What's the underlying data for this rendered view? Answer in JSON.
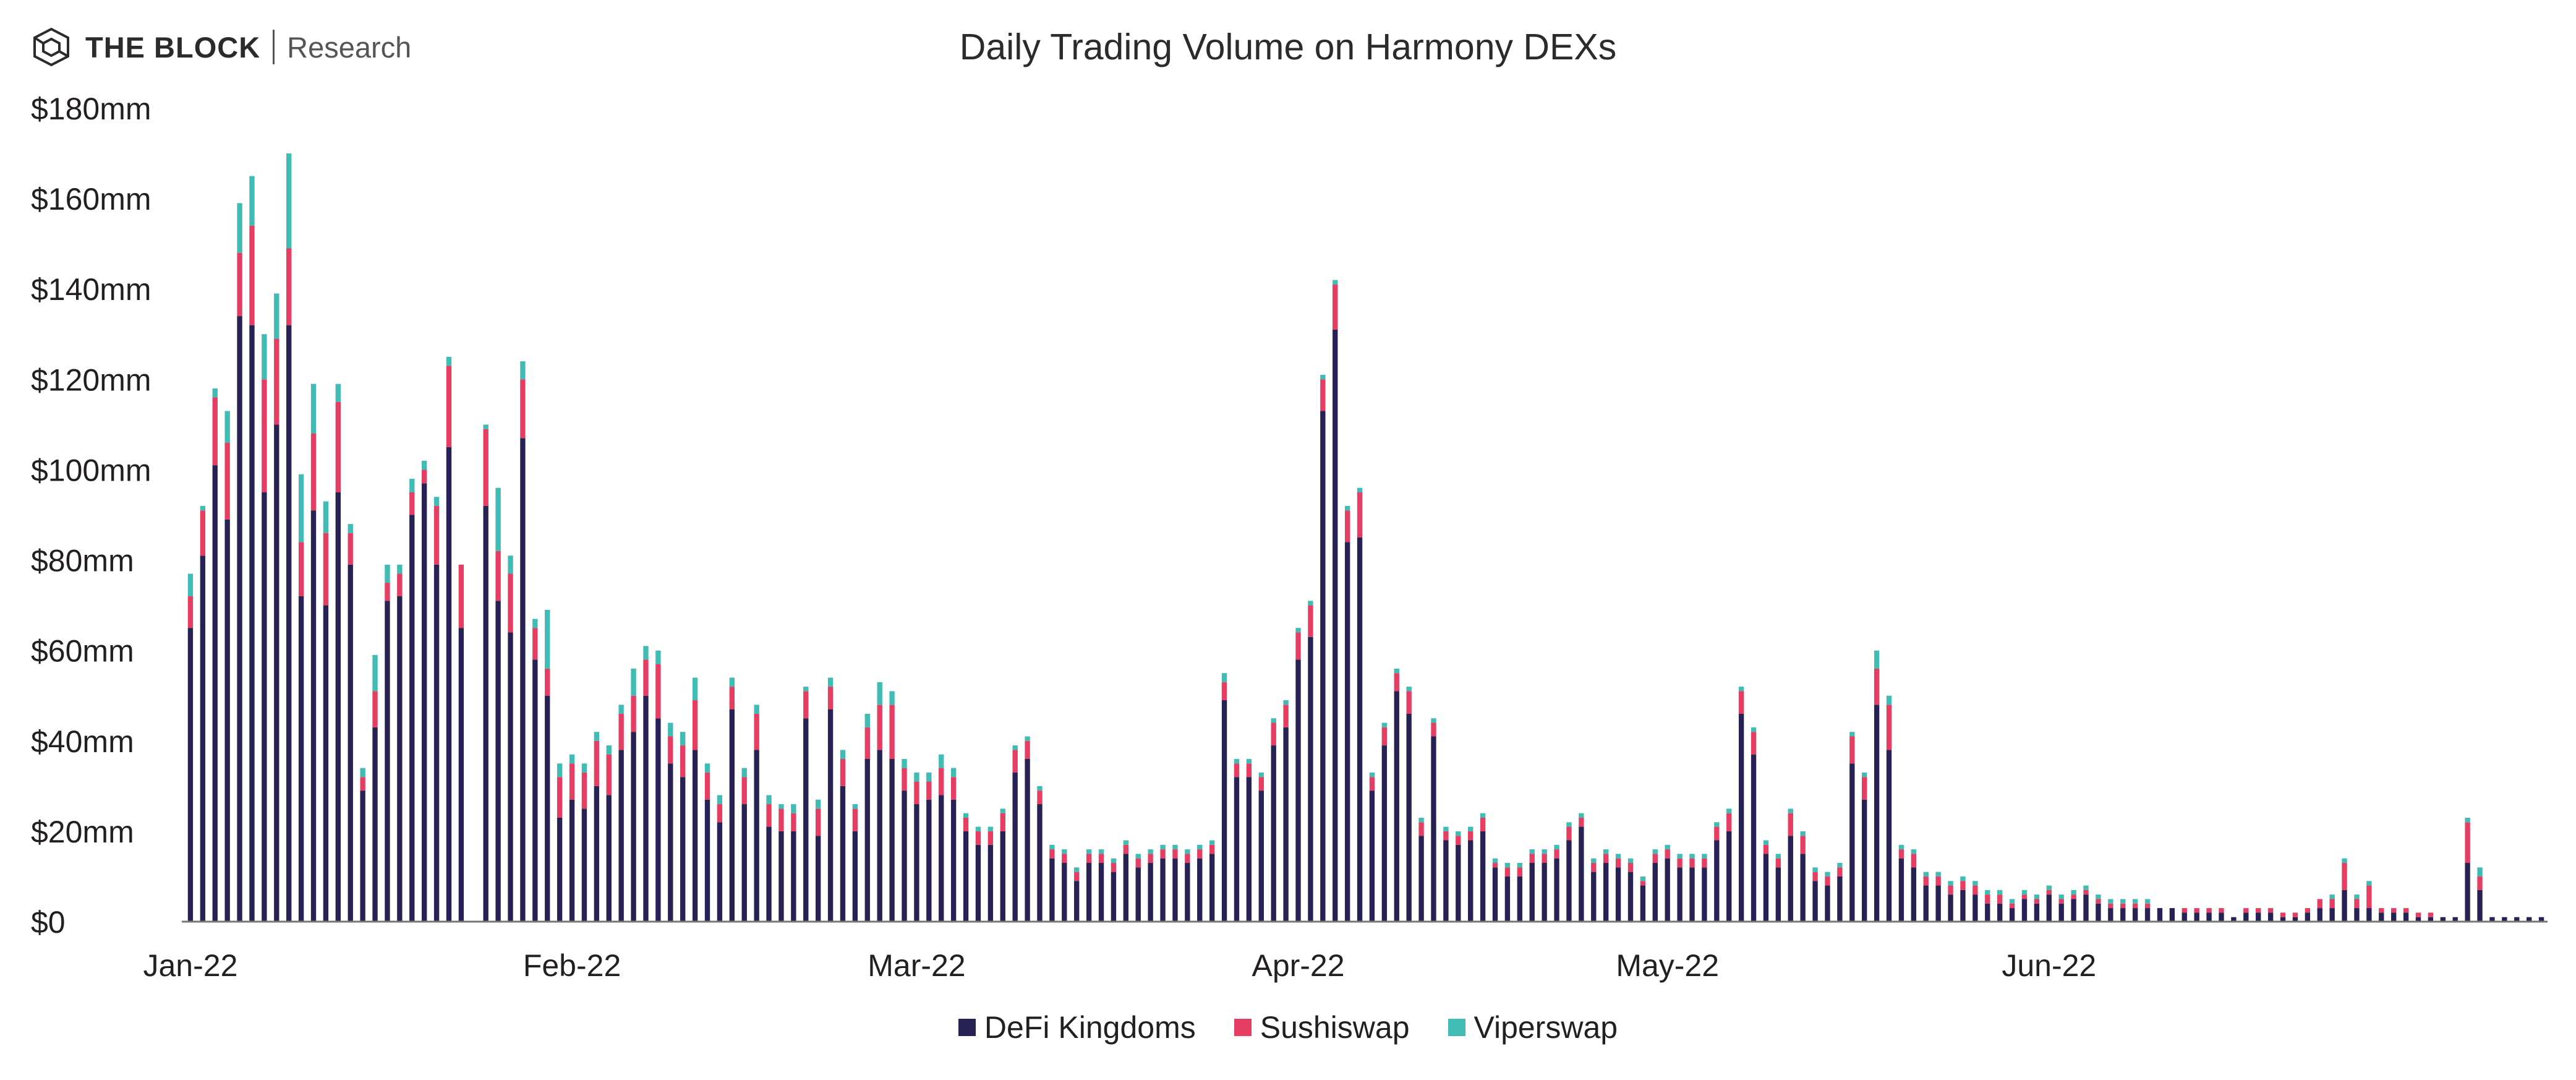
{
  "brand": {
    "name": "THE BLOCK",
    "sub": "Research"
  },
  "colors": {
    "defi": "#262254",
    "sushi": "#e63e62",
    "viper": "#40bcb4",
    "axis": "#777777"
  },
  "chart_data": {
    "type": "bar",
    "stacked": true,
    "title": "Daily Trading Volume on Harmony DEXs",
    "xlabel": "",
    "ylabel": "",
    "ylim": [
      0,
      180
    ],
    "y_ticks": [
      0,
      20,
      40,
      60,
      80,
      100,
      120,
      140,
      160,
      180
    ],
    "y_tick_labels": [
      "$0",
      "$20mm",
      "$40mm",
      "$60mm",
      "$80mm",
      "$100mm",
      "$120mm",
      "$140mm",
      "$160mm",
      "$180mm"
    ],
    "x_tick_labels": [
      {
        "index": 0,
        "label": "Jan-22"
      },
      {
        "index": 31,
        "label": "Feb-22"
      },
      {
        "index": 59,
        "label": "Mar-22"
      },
      {
        "index": 90,
        "label": "Apr-22"
      },
      {
        "index": 120,
        "label": "May-22"
      },
      {
        "index": 151,
        "label": "Jun-22"
      }
    ],
    "legend_position": "bottom-center",
    "series": [
      {
        "name": "DeFi Kingdoms",
        "color": "#262254",
        "values": [
          65,
          81,
          101,
          89,
          134,
          132,
          95,
          110,
          132,
          72,
          91,
          70,
          95,
          79,
          29,
          43,
          71,
          72,
          90,
          97,
          79,
          105,
          65,
          0,
          92,
          71,
          64,
          107,
          58,
          50,
          23,
          27,
          25,
          30,
          28,
          38,
          42,
          50,
          45,
          35,
          32,
          38,
          27,
          22,
          47,
          26,
          38,
          21,
          20,
          20,
          45,
          19,
          47,
          30,
          20,
          36,
          38,
          36,
          29,
          26,
          27,
          28,
          27,
          20,
          17,
          17,
          20,
          33,
          36,
          26,
          14,
          13,
          9,
          13,
          13,
          11,
          15,
          12,
          13,
          14,
          14,
          13,
          14,
          15,
          49,
          32,
          32,
          29,
          39,
          43,
          58,
          63,
          113,
          131,
          84,
          85,
          29,
          39,
          51,
          46,
          19,
          41,
          18,
          17,
          18,
          20,
          12,
          10,
          10,
          13,
          13,
          14,
          18,
          21,
          11,
          13,
          12,
          11,
          8,
          13,
          14,
          12,
          12,
          12,
          18,
          20,
          46,
          37,
          15,
          12,
          19,
          15,
          9,
          8,
          10,
          35,
          27,
          48,
          38,
          14,
          12,
          8,
          8,
          6,
          7,
          6,
          4,
          4,
          3,
          5,
          4,
          6,
          4,
          5,
          6,
          4,
          3,
          3,
          3,
          3,
          3,
          3,
          2,
          2,
          2,
          2,
          1,
          2,
          2,
          2,
          1,
          1,
          2,
          3,
          3,
          7,
          3,
          3,
          2,
          2,
          2,
          1,
          1,
          1,
          1,
          13,
          7,
          1,
          1,
          1,
          1,
          1
        ]
      },
      {
        "name": "Sushiswap",
        "color": "#e63e62",
        "values": [
          7,
          10,
          15,
          17,
          14,
          22,
          25,
          19,
          17,
          12,
          17,
          16,
          20,
          7,
          3,
          8,
          4,
          5,
          5,
          3,
          13,
          18,
          14,
          0,
          17,
          11,
          13,
          13,
          7,
          6,
          9,
          8,
          8,
          10,
          9,
          8,
          8,
          8,
          12,
          6,
          7,
          11,
          6,
          4,
          5,
          6,
          8,
          5,
          5,
          4,
          6,
          6,
          5,
          6,
          5,
          7,
          10,
          12,
          5,
          5,
          4,
          6,
          5,
          3,
          3,
          3,
          4,
          5,
          4,
          3,
          2,
          2,
          2,
          2,
          2,
          2,
          2,
          2,
          2,
          2,
          2,
          2,
          2,
          2,
          4,
          3,
          3,
          3,
          5,
          5,
          6,
          7,
          7,
          10,
          7,
          10,
          3,
          4,
          4,
          5,
          3,
          3,
          2,
          2,
          2,
          3,
          1,
          2,
          2,
          2,
          2,
          2,
          3,
          2,
          2,
          2,
          2,
          2,
          1,
          2,
          2,
          2,
          2,
          2,
          3,
          4,
          5,
          5,
          2,
          2,
          5,
          4,
          2,
          2,
          2,
          6,
          5,
          8,
          10,
          2,
          3,
          2,
          2,
          2,
          2,
          2,
          2,
          2,
          1,
          1,
          1,
          1,
          1,
          1,
          1,
          1,
          1,
          1,
          1,
          1,
          0,
          0,
          1,
          1,
          1,
          1,
          0,
          1,
          1,
          1,
          1,
          1,
          1,
          2,
          2,
          6,
          2,
          5,
          1,
          1,
          1,
          1,
          1,
          0,
          0,
          9,
          3,
          0,
          0,
          0,
          0,
          0
        ]
      },
      {
        "name": "Viperswap",
        "color": "#40bcb4",
        "values": [
          5,
          1,
          2,
          7,
          11,
          11,
          10,
          10,
          21,
          15,
          11,
          7,
          4,
          2,
          2,
          8,
          4,
          2,
          3,
          2,
          2,
          2,
          0,
          0,
          1,
          14,
          4,
          4,
          2,
          13,
          3,
          2,
          2,
          2,
          2,
          2,
          6,
          3,
          3,
          3,
          3,
          5,
          2,
          2,
          2,
          2,
          2,
          2,
          1,
          2,
          1,
          2,
          2,
          2,
          1,
          3,
          5,
          3,
          2,
          2,
          2,
          3,
          2,
          1,
          1,
          1,
          1,
          1,
          1,
          1,
          1,
          1,
          1,
          1,
          1,
          1,
          1,
          1,
          1,
          1,
          1,
          1,
          1,
          1,
          2,
          1,
          1,
          1,
          1,
          1,
          1,
          1,
          1,
          1,
          1,
          1,
          1,
          1,
          1,
          1,
          1,
          1,
          1,
          1,
          1,
          1,
          1,
          1,
          1,
          1,
          1,
          1,
          1,
          1,
          1,
          1,
          1,
          1,
          1,
          1,
          1,
          1,
          1,
          1,
          1,
          1,
          1,
          1,
          1,
          1,
          1,
          1,
          1,
          1,
          1,
          1,
          1,
          4,
          2,
          1,
          1,
          1,
          1,
          1,
          1,
          1,
          1,
          1,
          1,
          1,
          1,
          1,
          1,
          1,
          1,
          1,
          1,
          1,
          1,
          1,
          0,
          0,
          0,
          0,
          0,
          0,
          0,
          0,
          0,
          0,
          0,
          0,
          0,
          0,
          1,
          1,
          1,
          1,
          0,
          0,
          0,
          0,
          0,
          0,
          0,
          1,
          2,
          0,
          0,
          0,
          0,
          0
        ]
      }
    ]
  }
}
